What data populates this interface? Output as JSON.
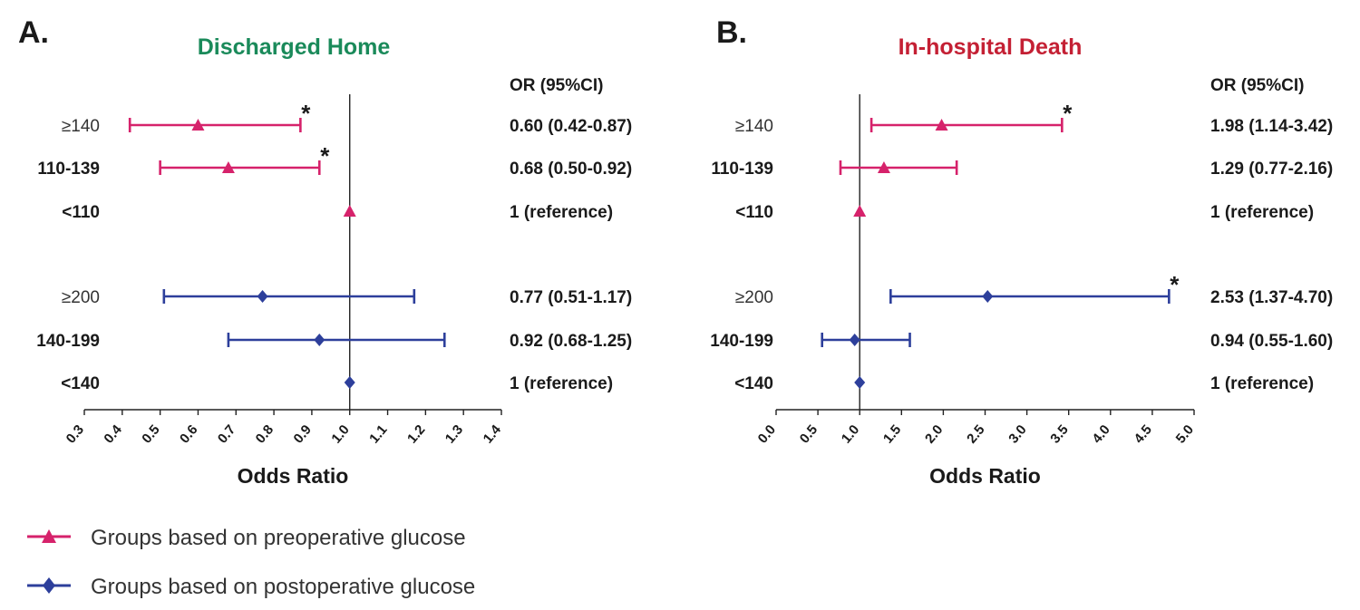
{
  "colors": {
    "preoperative": "#d6226b",
    "postoperative": "#2d3f9b",
    "title_a": "#1a8a5a",
    "title_b": "#c42034",
    "axis": "#222222"
  },
  "legend": [
    {
      "label": "Groups based on preoperative glucose",
      "marker": "triangle",
      "color_key": "preoperative"
    },
    {
      "label": "Groups based on postoperative glucose",
      "marker": "diamond",
      "color_key": "postoperative"
    }
  ],
  "chart_data": [
    {
      "type": "forest",
      "panel": "A.",
      "title": "Discharged Home",
      "title_color_key": "title_a",
      "or_header": "OR (95%CI)",
      "xlabel": "Odds Ratio",
      "xlim": [
        0.3,
        1.4
      ],
      "xticks": [
        "0.3",
        "0.4",
        "0.5",
        "0.6",
        "0.7",
        "0.8",
        "0.9",
        "1.0",
        "1.1",
        "1.2",
        "1.3",
        "1.4"
      ],
      "reference_line": 1.0,
      "rows": [
        {
          "label": "≥140",
          "or": 0.6,
          "lo": 0.42,
          "hi": 0.87,
          "or_text": "0.60 (0.42-0.87)",
          "series": "preoperative",
          "sig": "*"
        },
        {
          "label": "110-139",
          "or": 0.68,
          "lo": 0.5,
          "hi": 0.92,
          "or_text": "0.68 (0.50-0.92)",
          "series": "preoperative",
          "sig": "*"
        },
        {
          "label": "<110",
          "or": 1.0,
          "lo": null,
          "hi": null,
          "or_text": "1 (reference)",
          "series": "preoperative",
          "sig": ""
        },
        {
          "label": "≥200",
          "or": 0.77,
          "lo": 0.51,
          "hi": 1.17,
          "or_text": "0.77 (0.51-1.17)",
          "series": "postoperative",
          "sig": ""
        },
        {
          "label": "140-199",
          "or": 0.92,
          "lo": 0.68,
          "hi": 1.25,
          "or_text": "0.92 (0.68-1.25)",
          "series": "postoperative",
          "sig": ""
        },
        {
          "label": "<140",
          "or": 1.0,
          "lo": null,
          "hi": null,
          "or_text": "1 (reference)",
          "series": "postoperative",
          "sig": ""
        }
      ]
    },
    {
      "type": "forest",
      "panel": "B.",
      "title": "In-hospital Death",
      "title_color_key": "title_b",
      "or_header": "OR (95%CI)",
      "xlabel": "Odds Ratio",
      "xlim": [
        0.0,
        5.0
      ],
      "xticks": [
        "0.0",
        "0.5",
        "1.0",
        "1.5",
        "2.0",
        "2.5",
        "3.0",
        "3.5",
        "4.0",
        "4.5",
        "5.0"
      ],
      "reference_line": 1.0,
      "rows": [
        {
          "label": "≥140",
          "or": 1.98,
          "lo": 1.14,
          "hi": 3.42,
          "or_text": "1.98 (1.14-3.42)",
          "series": "preoperative",
          "sig": "*"
        },
        {
          "label": "110-139",
          "or": 1.29,
          "lo": 0.77,
          "hi": 2.16,
          "or_text": "1.29 (0.77-2.16)",
          "series": "preoperative",
          "sig": ""
        },
        {
          "label": "<110",
          "or": 1.0,
          "lo": null,
          "hi": null,
          "or_text": "1 (reference)",
          "series": "preoperative",
          "sig": ""
        },
        {
          "label": "≥200",
          "or": 2.53,
          "lo": 1.37,
          "hi": 4.7,
          "or_text": "2.53 (1.37-4.70)",
          "series": "postoperative",
          "sig": "*"
        },
        {
          "label": "140-199",
          "or": 0.94,
          "lo": 0.55,
          "hi": 1.6,
          "or_text": "0.94 (0.55-1.60)",
          "series": "postoperative",
          "sig": ""
        },
        {
          "label": "<140",
          "or": 1.0,
          "lo": null,
          "hi": null,
          "or_text": "1 (reference)",
          "series": "postoperative",
          "sig": ""
        }
      ]
    }
  ]
}
